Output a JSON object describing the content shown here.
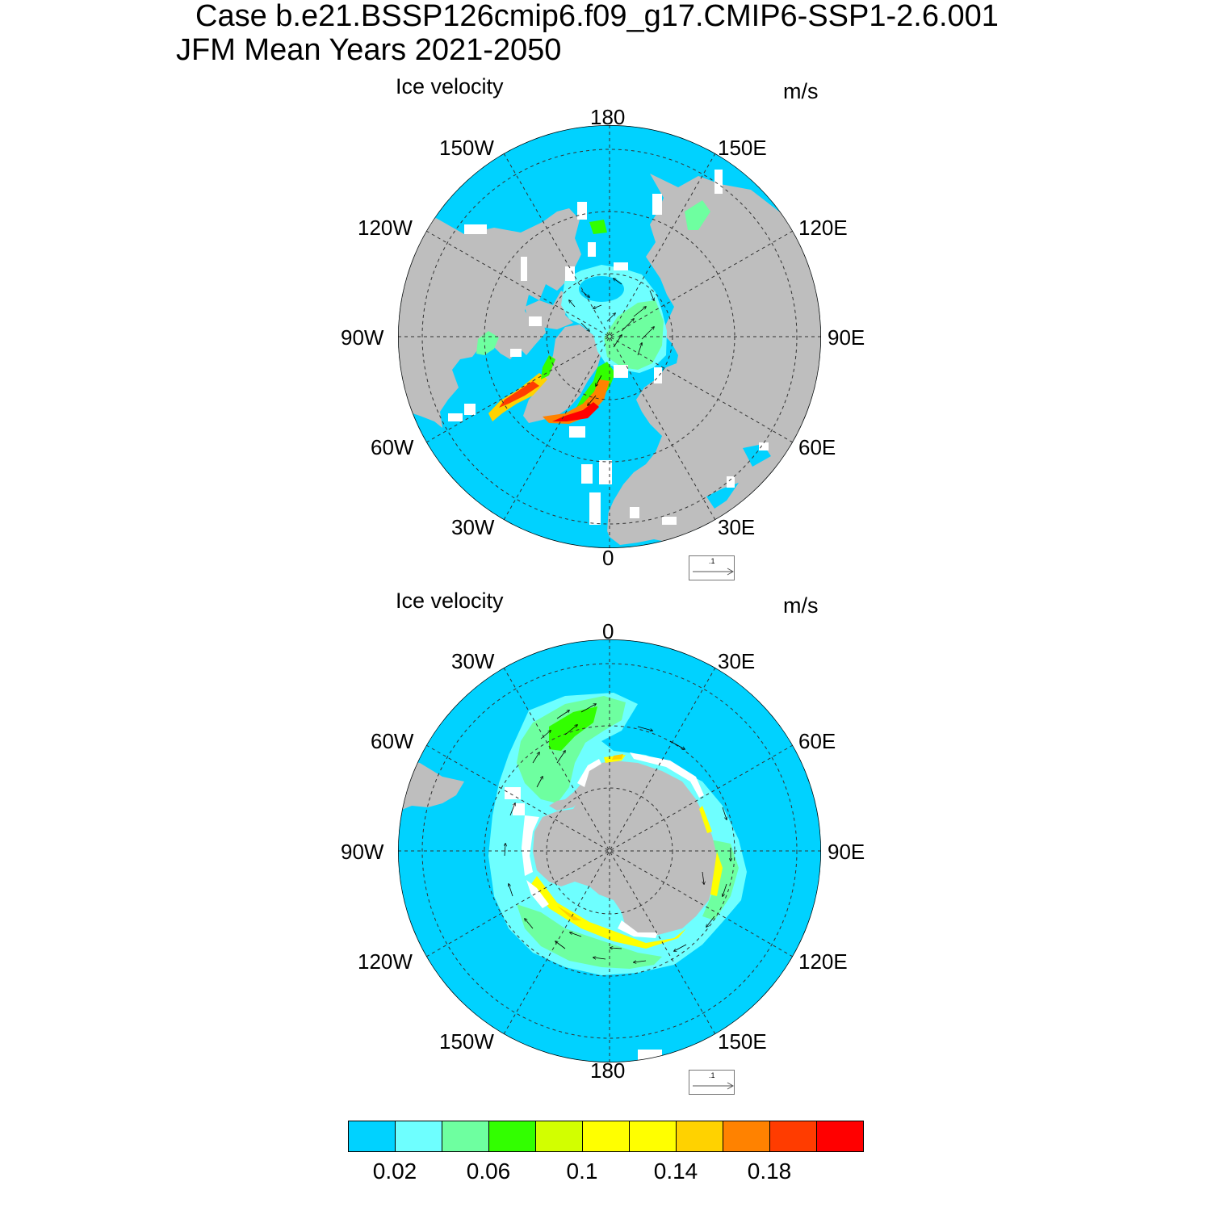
{
  "title": {
    "line1": "Case b.e21.BSSP126cmip6.f09_g17.CMIP6-SSP1-2.6.001",
    "line2": "JFM Mean   Years 2021-2050"
  },
  "panels": [
    {
      "id": "north",
      "title": "Ice velocity",
      "units": "m/s",
      "lon_labels": {
        "top": "180",
        "top_left": "150W",
        "top_right": "150E",
        "upper_left": "120W",
        "upper_right": "120E",
        "left": "90W",
        "right": "90E",
        "lower_left": "60W",
        "lower_right": "60E",
        "bottom_left": "30W",
        "bottom_right": "30E",
        "bottom": "0"
      },
      "reference_vector": ".1"
    },
    {
      "id": "south",
      "title": "Ice velocity",
      "units": "m/s",
      "lon_labels": {
        "top": "0",
        "top_left": "30W",
        "top_right": "30E",
        "upper_left": "60W",
        "upper_right": "60E",
        "left": "90W",
        "right": "90E",
        "lower_left": "120W",
        "lower_right": "120E",
        "bottom_left": "150W",
        "bottom_right": "150E",
        "bottom": "180"
      },
      "reference_vector": ".1"
    }
  ],
  "colorbar": {
    "colors": [
      "#00d2ff",
      "#6effff",
      "#6effa0",
      "#32ff00",
      "#d2ff00",
      "#ffff00",
      "#ffff00",
      "#ffd200",
      "#ff8200",
      "#ff3c00",
      "#ff0000"
    ],
    "labels": [
      "0.02",
      "0.06",
      "0.1",
      "0.14",
      "0.18"
    ]
  },
  "colors": {
    "ocean": "#00d2ff",
    "land": "#bebebe",
    "no_data": "#ffffff"
  }
}
